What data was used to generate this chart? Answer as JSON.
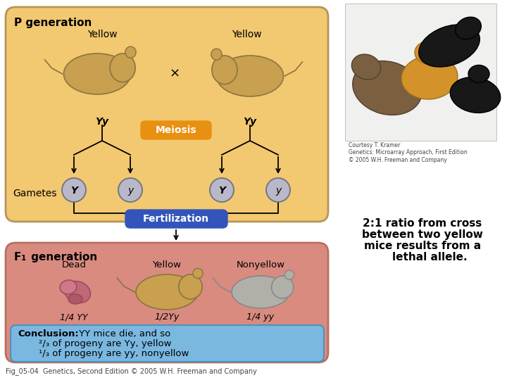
{
  "bg_color": "#ffffff",
  "p_gen_box_color": "#F2C870",
  "p_gen_box_edge": "#B8945A",
  "f1_gen_box_color": "#D98B80",
  "f1_gen_box_edge": "#B87060",
  "meiosis_box_color": "#E89010",
  "fertilization_box_color": "#3355BB",
  "conclusion_box_color": "#7AB8E0",
  "gamete_circle_color": "#B8B8C8",
  "gamete_circle_edge": "#707080",
  "arrow_color": "#000000",
  "p_gen_label": "P generation",
  "yellow_label": "Yellow",
  "meiosis_label": "Meiosis",
  "fertilization_label": "Fertilization",
  "gametes_label": "Gametes",
  "cross_symbol": "×",
  "genotype_p": "Yy",
  "dead_label": "Dead",
  "yellow_f1_label": "Yellow",
  "nonyellow_label": "Nonyellow",
  "fraction_yy": "1/4 YY",
  "fraction_Yy": "1/2Yy",
  "fraction_yy2": "1/4 yy",
  "caption": "Fig_05-04  Genetics, Second Edition © 2005 W.H. Freeman and Company",
  "side_text_line1": "2:1 ratio from cross",
  "side_text_line2": "between two yellow",
  "side_text_line3": "mice results from a",
  "side_text_line4": "    lethal allele.",
  "side_text_color": "#000000",
  "side_text_fontsize": 11,
  "photo_bg": "#e8e8e8",
  "mouse_yellow_color": "#C8A050",
  "mouse_black_color": "#1a1a1a",
  "mouse_brown_color": "#6a4828",
  "mouse_gray_color": "#B0B0A8",
  "dead_color1": "#B06050",
  "dead_color2": "#C87060"
}
